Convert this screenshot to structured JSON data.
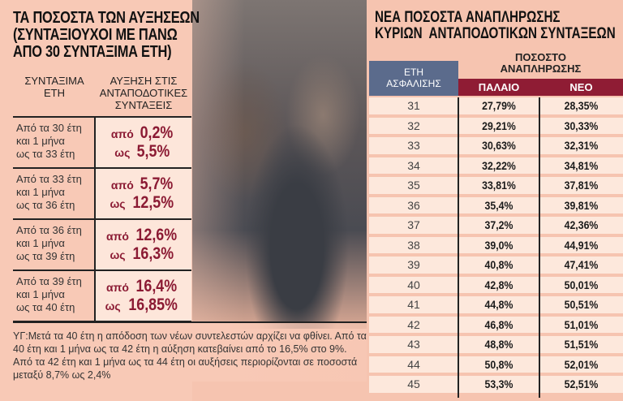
{
  "left": {
    "title": [
      "ΤΑ ΠΟΣΟΣΤΑ ΤΩΝ ΑΥΞΗΣΕΩΝ",
      "(ΣΥΝΤΑΞΙΟΥΧΟΙ ΜΕ ΠΑΝΩ",
      "ΑΠΟ 30 ΣΥΝΤΑΞΙΜΑ ΕΤΗ)"
    ],
    "col1": [
      "ΣΥΝΤΑΞΙΜΑ",
      "ΕΤΗ"
    ],
    "col2": [
      "ΑΥΞΗΣΗ ΣΤΙΣ",
      "ΑΝΤΑΠΟΔΟΤΙΚΕΣ",
      "ΣΥΝΤΑΞΕΙΣ"
    ],
    "rows": [
      {
        "range": [
          "Από τα 30 έτη",
          "και 1 μήνα",
          "ως τα 33 έτη"
        ],
        "from": "0,2%",
        "to": "5,5%"
      },
      {
        "range": [
          "Από τα 33 έτη",
          "και 1 μήνα",
          "ως τα 36 έτη"
        ],
        "from": "5,7%",
        "to": "12,5%"
      },
      {
        "range": [
          "Από τα 36 έτη",
          "και 1 μήνα",
          "ως τα 39 έτη"
        ],
        "from": "12,6%",
        "to": "16,3%"
      },
      {
        "range": [
          "Από τα 39 έτη",
          "και 1 μήνα",
          "ως τα 40 έτη"
        ],
        "from": "16,4%",
        "to": "16,85%"
      }
    ],
    "from_word": "από",
    "to_word": "ως",
    "note": "ΥΓ:Μετά τα 40 έτη η απόδοση των νέων συντελεστών αρχίζει να φθίνει. Από τα 40 έτη και 1 μήνα ως τα 42 έτη η αύξηση κατεβαίνει από το 16,5% στο 9%. Από τα 42 έτη και 1 μήνα ως τα 44 έτη οι αυξήσεις περιορίζονται σε ποσοστά μεταξύ 8,7% ως 2,4%"
  },
  "right": {
    "title": [
      "ΝΕΑ ΠΟΣΟΣΤΑ ΑΝΑΠΛΗΡΩΣΗΣ",
      "ΚΥΡΙΩΝ  ΑΝΤΑΠΟΔΟΤΙΚΩΝ ΣΥΝΤΑΞΕΩΝ"
    ],
    "eth": [
      "ΕΤΗ",
      "ΑΣΦΑΛΙΣΗΣ"
    ],
    "pososto": [
      "ΠΟΣΟΣΤΟ",
      "ΑΝΑΠΛΗΡΩΣΗΣ"
    ],
    "old": "ΠΑΛΑΙΟ",
    "new": "ΝΕΟ",
    "rows": [
      [
        "31",
        "27,79%",
        "28,35%"
      ],
      [
        "32",
        "29,21%",
        "30,33%"
      ],
      [
        "33",
        "30,63%",
        "32,31%"
      ],
      [
        "34",
        "32,22%",
        "34,81%"
      ],
      [
        "35",
        "33,81%",
        "37,81%"
      ],
      [
        "36",
        "35,4%",
        "39,81%"
      ],
      [
        "37",
        "37,2%",
        "42,36%"
      ],
      [
        "38",
        "39,0%",
        "44,91%"
      ],
      [
        "39",
        "40,8%",
        "47,41%"
      ],
      [
        "40",
        "42,8%",
        "50,01%"
      ],
      [
        "41",
        "44,8%",
        "50,51%"
      ],
      [
        "42",
        "46,8%",
        "51,01%"
      ],
      [
        "43",
        "48,8%",
        "51,51%"
      ],
      [
        "44",
        "50,8%",
        "52,01%"
      ],
      [
        "45",
        "53,3%",
        "52,51%"
      ]
    ]
  },
  "colors": {
    "accent_red": "#8f1c34",
    "header_blue": "#5b6b8c",
    "background": "#f6c4b0"
  }
}
